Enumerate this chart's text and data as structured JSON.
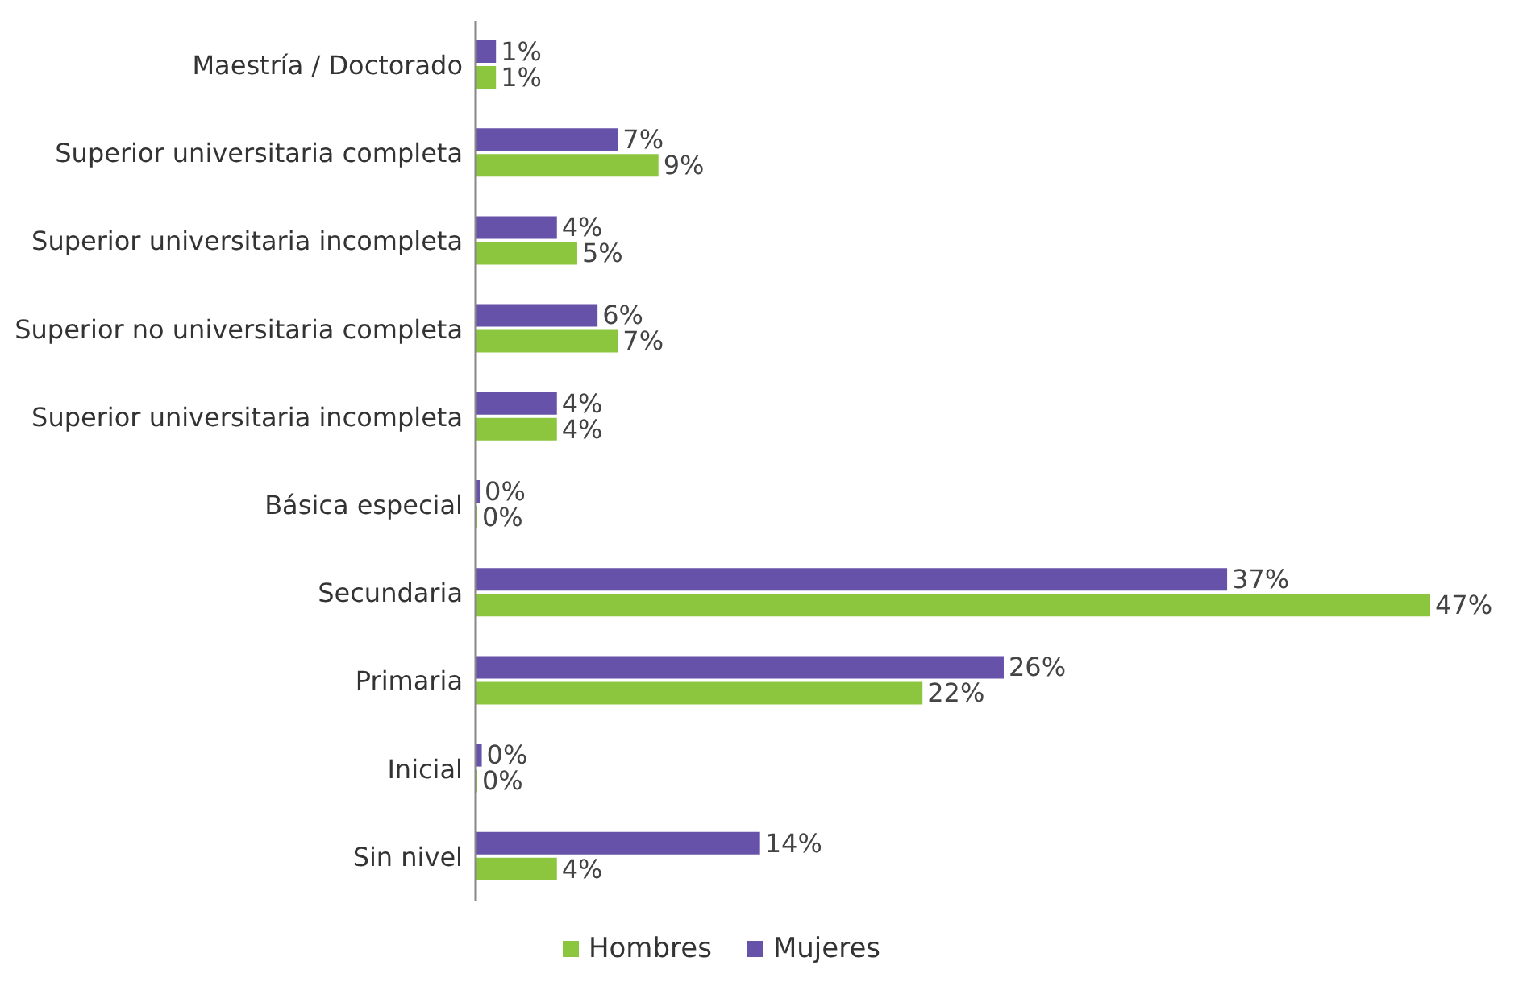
{
  "chart_data": {
    "type": "bar",
    "orientation": "horizontal",
    "categories": [
      "Maestría / Doctorado",
      "Superior universitaria completa",
      "Superior universitaria incompleta",
      "Superior no universitaria completa",
      "Superior universitaria incompleta",
      "Básica especial",
      "Secundaria",
      "Primaria",
      "Inicial",
      "Sin nivel"
    ],
    "series": [
      {
        "name": "Mujeres",
        "color": "#6652a8",
        "values": [
          1,
          7,
          4,
          6,
          4,
          0.2,
          37,
          26,
          0.3,
          14
        ],
        "value_labels": [
          "1%",
          "7%",
          "4%",
          "6%",
          "4%",
          "0%",
          "37%",
          "26%",
          "0%",
          "14%"
        ]
      },
      {
        "name": "Hombres",
        "color": "#8cc63f",
        "values": [
          1,
          9,
          5,
          7,
          4,
          0,
          47,
          22,
          0,
          4
        ],
        "value_labels": [
          "1%",
          "9%",
          "5%",
          "7%",
          "4%",
          "0%",
          "47%",
          "22%",
          "0%",
          "4%"
        ]
      }
    ],
    "legend": "bottom",
    "tick_labels": "y"
  }
}
